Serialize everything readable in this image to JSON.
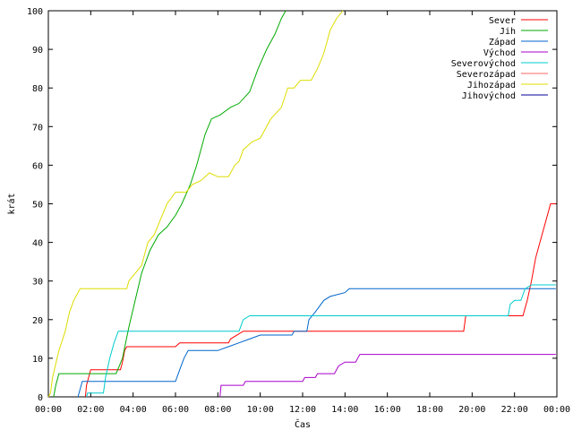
{
  "chart_data": {
    "type": "line",
    "title": "",
    "xlabel": "Čas",
    "ylabel": "krát",
    "xlim": [
      0,
      24
    ],
    "ylim": [
      0,
      100
    ],
    "x_ticks": [
      0,
      2,
      4,
      6,
      8,
      10,
      12,
      14,
      16,
      18,
      20,
      22,
      24
    ],
    "x_tick_labels": [
      "00:00",
      "02:00",
      "04:00",
      "06:00",
      "08:00",
      "10:00",
      "12:00",
      "14:00",
      "16:00",
      "18:00",
      "20:00",
      "22:00",
      "00:00"
    ],
    "y_ticks": [
      0,
      10,
      20,
      30,
      40,
      50,
      60,
      70,
      80,
      90,
      100
    ],
    "y_tick_labels": [
      "0",
      "10",
      "20",
      "30",
      "40",
      "50",
      "60",
      "70",
      "80",
      "90",
      "100"
    ],
    "grid": false,
    "legend_position": "top-right",
    "series": [
      {
        "name": "Sever",
        "color": "#ff0000",
        "points": [
          [
            1.75,
            0
          ],
          [
            1.8,
            3
          ],
          [
            1.9,
            5
          ],
          [
            2.0,
            7
          ],
          [
            3.4,
            7
          ],
          [
            3.5,
            9
          ],
          [
            3.6,
            12
          ],
          [
            3.7,
            13
          ],
          [
            6.0,
            13
          ],
          [
            6.2,
            14
          ],
          [
            8.0,
            14
          ],
          [
            8.5,
            14
          ],
          [
            8.6,
            15
          ],
          [
            9.2,
            17
          ],
          [
            19.6,
            17
          ],
          [
            19.7,
            21
          ],
          [
            22.4,
            21
          ],
          [
            22.6,
            25
          ],
          [
            22.8,
            30
          ],
          [
            23.0,
            36
          ],
          [
            23.3,
            42
          ],
          [
            23.5,
            46
          ],
          [
            23.7,
            50
          ],
          [
            23.95,
            50
          ]
        ]
      },
      {
        "name": "Jih",
        "color": "#00aa00",
        "points": [
          [
            0.25,
            0
          ],
          [
            0.35,
            3
          ],
          [
            0.5,
            6
          ],
          [
            3.2,
            6
          ],
          [
            3.5,
            10
          ],
          [
            3.8,
            18
          ],
          [
            4.1,
            25
          ],
          [
            4.4,
            32
          ],
          [
            4.8,
            38
          ],
          [
            5.2,
            42
          ],
          [
            5.6,
            44
          ],
          [
            6.0,
            47
          ],
          [
            6.3,
            50
          ],
          [
            6.7,
            55
          ],
          [
            7.0,
            60
          ],
          [
            7.4,
            68
          ],
          [
            7.7,
            72
          ],
          [
            8.1,
            73
          ],
          [
            8.6,
            75
          ],
          [
            9.0,
            76
          ],
          [
            9.5,
            79
          ],
          [
            9.9,
            85
          ],
          [
            10.3,
            90
          ],
          [
            10.7,
            94
          ],
          [
            11.0,
            98
          ],
          [
            11.2,
            100
          ]
        ]
      },
      {
        "name": "Západ",
        "color": "#0066cc",
        "points": [
          [
            1.4,
            0
          ],
          [
            1.5,
            2
          ],
          [
            1.6,
            4
          ],
          [
            6.0,
            4
          ],
          [
            6.2,
            7
          ],
          [
            6.4,
            10
          ],
          [
            6.6,
            12
          ],
          [
            8.0,
            12
          ],
          [
            8.5,
            13
          ],
          [
            9.0,
            14
          ],
          [
            9.5,
            15
          ],
          [
            10.0,
            16
          ],
          [
            11.5,
            16
          ],
          [
            11.6,
            17
          ],
          [
            12.2,
            17
          ],
          [
            12.3,
            20
          ],
          [
            12.6,
            22
          ],
          [
            13.0,
            25
          ],
          [
            13.3,
            26
          ],
          [
            14.0,
            27
          ],
          [
            14.2,
            28
          ],
          [
            23.95,
            28
          ]
        ]
      },
      {
        "name": "Východ",
        "color": "#aa00cc",
        "points": [
          [
            8.1,
            0
          ],
          [
            8.15,
            3
          ],
          [
            9.2,
            3
          ],
          [
            9.3,
            4
          ],
          [
            12.0,
            4
          ],
          [
            12.1,
            5
          ],
          [
            12.6,
            5
          ],
          [
            12.7,
            6
          ],
          [
            13.5,
            6
          ],
          [
            13.7,
            8
          ],
          [
            14.0,
            9
          ],
          [
            14.5,
            9
          ],
          [
            14.7,
            11
          ],
          [
            23.95,
            11
          ]
        ]
      },
      {
        "name": "Severovýchod",
        "color": "#00cccc",
        "points": [
          [
            1.8,
            0
          ],
          [
            1.85,
            1
          ],
          [
            2.6,
            1
          ],
          [
            2.7,
            5
          ],
          [
            2.9,
            10
          ],
          [
            3.1,
            14
          ],
          [
            3.3,
            17
          ],
          [
            9.0,
            17
          ],
          [
            9.2,
            20
          ],
          [
            9.5,
            21
          ],
          [
            21.7,
            21
          ],
          [
            21.8,
            24
          ],
          [
            22.0,
            25
          ],
          [
            22.3,
            25
          ],
          [
            22.5,
            28
          ],
          [
            22.8,
            29
          ],
          [
            23.95,
            29
          ]
        ]
      },
      {
        "name": "Severozápad",
        "color": "#ff6666",
        "points": []
      },
      {
        "name": "Jihozápad",
        "color": "#dddd00",
        "points": [
          [
            0.0,
            0
          ],
          [
            0.1,
            1
          ],
          [
            0.2,
            5
          ],
          [
            0.5,
            12
          ],
          [
            0.8,
            17
          ],
          [
            1.0,
            22
          ],
          [
            1.2,
            25
          ],
          [
            1.5,
            28
          ],
          [
            3.7,
            28
          ],
          [
            3.8,
            30
          ],
          [
            4.1,
            32
          ],
          [
            4.4,
            34
          ],
          [
            4.7,
            40
          ],
          [
            5.0,
            42
          ],
          [
            5.3,
            46
          ],
          [
            5.6,
            50
          ],
          [
            6.0,
            53
          ],
          [
            6.5,
            53
          ],
          [
            6.8,
            55
          ],
          [
            7.2,
            56
          ],
          [
            7.6,
            58
          ],
          [
            8.0,
            57
          ],
          [
            8.5,
            57
          ],
          [
            8.8,
            60
          ],
          [
            9.0,
            61
          ],
          [
            9.2,
            64
          ],
          [
            9.6,
            66
          ],
          [
            10.0,
            67
          ],
          [
            10.3,
            70
          ],
          [
            10.5,
            72
          ],
          [
            11.0,
            75
          ],
          [
            11.3,
            80
          ],
          [
            11.6,
            80
          ],
          [
            11.9,
            82
          ],
          [
            12.4,
            82
          ],
          [
            12.7,
            85
          ],
          [
            13.0,
            89
          ],
          [
            13.3,
            95
          ],
          [
            13.6,
            98
          ],
          [
            13.9,
            100
          ]
        ]
      },
      {
        "name": "Jihovýchod",
        "color": "#000099",
        "points": []
      }
    ]
  }
}
